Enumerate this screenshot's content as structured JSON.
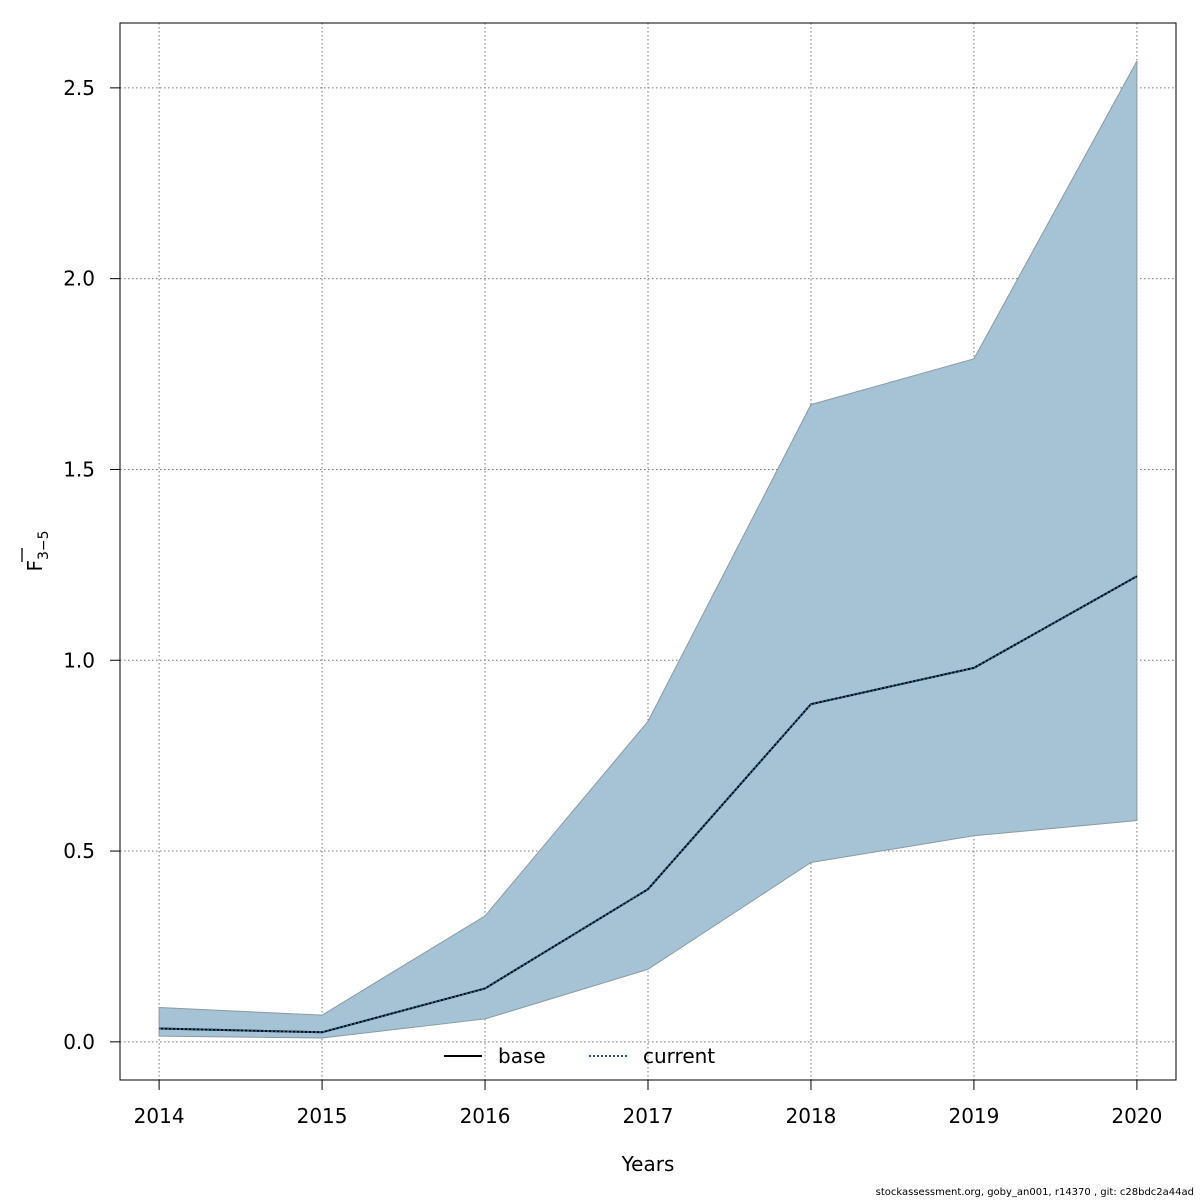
{
  "chart_data": {
    "type": "area",
    "xlabel": "Years",
    "ylabel": "F",
    "ylabel_subscript": "3−5",
    "x": [
      2014,
      2015,
      2016,
      2017,
      2018,
      2019,
      2020
    ],
    "x_ticks": [
      "2014",
      "2015",
      "2016",
      "2017",
      "2018",
      "2019",
      "2020"
    ],
    "y_ticks": [
      "0.0",
      "0.5",
      "1.0",
      "1.5",
      "2.0",
      "2.5"
    ],
    "ylim": [
      -0.1,
      2.67
    ],
    "grid": true,
    "series": [
      {
        "name": "base",
        "line": "solid",
        "color": "#000000",
        "values": [
          0.035,
          0.025,
          0.14,
          0.4,
          0.885,
          0.98,
          1.22
        ]
      },
      {
        "name": "current",
        "line": "dotted",
        "color": "#1f5f8b",
        "values": [
          0.035,
          0.025,
          0.14,
          0.4,
          0.885,
          0.98,
          1.22
        ]
      }
    ],
    "band": {
      "upper": [
        0.09,
        0.07,
        0.33,
        0.84,
        1.67,
        1.79,
        2.57
      ],
      "lower": [
        0.015,
        0.01,
        0.06,
        0.19,
        0.47,
        0.54,
        0.58
      ],
      "color": "#a5c3d4"
    },
    "legend": {
      "placement": "bottom-center"
    }
  },
  "footer": "stockassessment.org, goby_an001, r14370 , git: c28bdc2a44ad"
}
